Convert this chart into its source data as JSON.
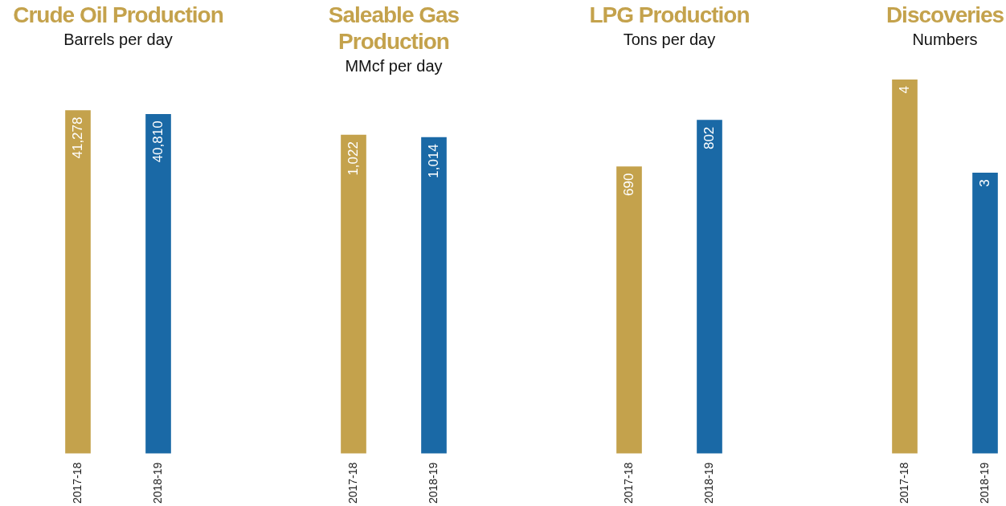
{
  "chart_data": [
    {
      "type": "bar",
      "title": "Crude Oil Production",
      "subtitle": "Barrels per day",
      "categories": [
        "2017-18",
        "2018-19"
      ],
      "values": [
        41278,
        40810
      ],
      "colors": [
        "#c4a24c",
        "#1a69a6"
      ],
      "value_labels": [
        "41,278",
        "40,810"
      ],
      "tick_labels": "x",
      "grid": false
    },
    {
      "type": "bar",
      "title": "Saleable Gas Production",
      "subtitle": "MMcf per day",
      "categories": [
        "2017-18",
        "2018-19"
      ],
      "values": [
        1022,
        1014
      ],
      "colors": [
        "#c4a24c",
        "#1a69a6"
      ],
      "value_labels": [
        "1,022",
        "1,014"
      ],
      "tick_labels": "x",
      "grid": false
    },
    {
      "type": "bar",
      "title": "LPG Production",
      "subtitle": "Tons per day",
      "categories": [
        "2017-18",
        "2018-19"
      ],
      "values": [
        690,
        802
      ],
      "colors": [
        "#c4a24c",
        "#1a69a6"
      ],
      "value_labels": [
        "690",
        "802"
      ],
      "tick_labels": "x",
      "grid": false
    },
    {
      "type": "bar",
      "title": "Discoveries",
      "subtitle": "Numbers",
      "categories": [
        "2017-18",
        "2018-19"
      ],
      "values": [
        4,
        3
      ],
      "colors": [
        "#c4a24c",
        "#1a69a6"
      ],
      "value_labels": [
        "4",
        "3"
      ],
      "tick_labels": "x",
      "grid": false
    }
  ]
}
